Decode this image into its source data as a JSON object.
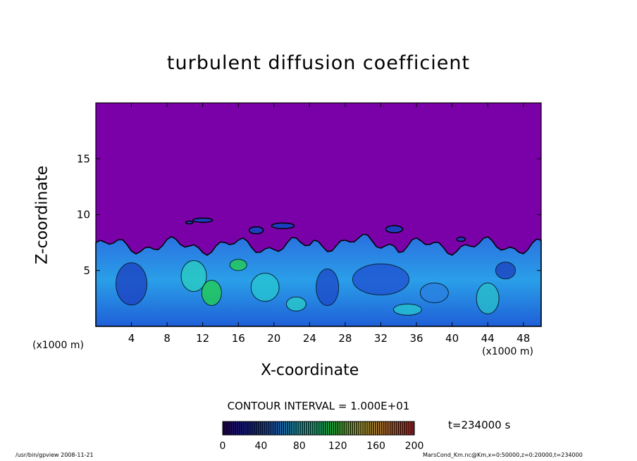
{
  "chart_data": {
    "type": "heatmap",
    "title": "turbulent diffusion coefficient",
    "xlabel": "X-coordinate",
    "ylabel": "Z-coordinate",
    "x_unit": "(x1000 m)",
    "xlim": [
      0,
      50
    ],
    "ylim": [
      0,
      20
    ],
    "x_ticks": [
      4,
      8,
      12,
      16,
      20,
      24,
      28,
      32,
      36,
      40,
      44,
      48
    ],
    "y_ticks": [
      5,
      10,
      15
    ],
    "colorbar": {
      "min": 0,
      "max": 200,
      "ticks": [
        0,
        40,
        80,
        120,
        160,
        200
      ],
      "colors": [
        "#2a0070",
        "#1a2aa8",
        "#2277e0",
        "#29d0c8",
        "#22d24a",
        "#c8c83a",
        "#e08a3a",
        "#d83030"
      ]
    },
    "contour_interval": "CONTOUR INTERVAL = 1.000E+01",
    "time": "t=234000 s",
    "background_color": "#7a00a8"
  },
  "footer": {
    "left": "/usr/bin/gpview   2008-11-21",
    "right": "MarsCond_Km.nc@Km,x=0:50000,z=0:20000,t=234000"
  }
}
